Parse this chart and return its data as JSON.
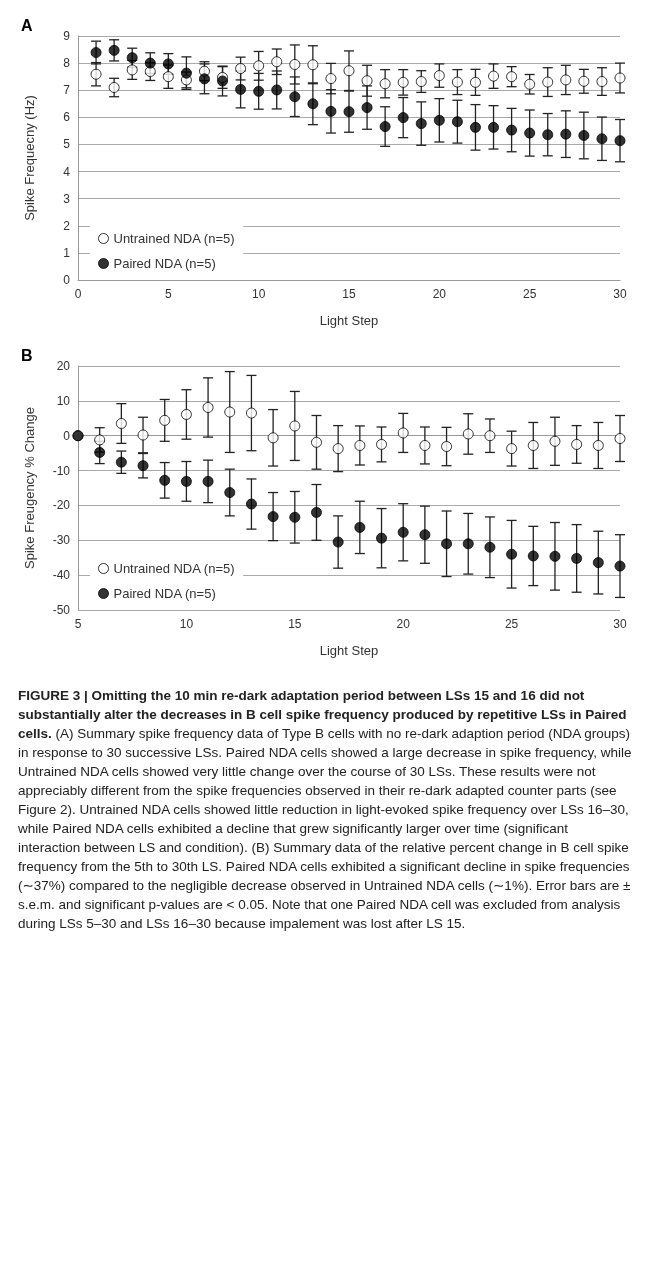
{
  "chart_data": [
    {
      "type": "scatter",
      "title": "A",
      "xlabel": "Light Step",
      "ylabel": "Spike Frequecny (Hz)",
      "xlim": [
        0,
        30
      ],
      "xticks": [
        0,
        5,
        10,
        15,
        20,
        25,
        30
      ],
      "ylim": [
        0,
        9
      ],
      "yticks": [
        0,
        1,
        2,
        3,
        4,
        5,
        6,
        7,
        8,
        9
      ],
      "grid": "y",
      "legend": "bottom left",
      "marker": "circle",
      "x": [
        1,
        2,
        3,
        4,
        5,
        6,
        7,
        8,
        9,
        10,
        11,
        12,
        13,
        14,
        15,
        16,
        17,
        18,
        19,
        20,
        21,
        22,
        23,
        24,
        25,
        26,
        27,
        28,
        29,
        30
      ],
      "series": [
        {
          "name": "Untrained NDA (n=5)",
          "color": "#ffffff",
          "values": [
            7.59,
            7.1,
            7.75,
            7.69,
            7.5,
            7.38,
            7.7,
            7.47,
            7.8,
            7.9,
            8.05,
            7.95,
            7.94,
            7.43,
            7.72,
            7.35,
            7.24,
            7.29,
            7.32,
            7.54,
            7.3,
            7.29,
            7.52,
            7.5,
            7.22,
            7.3,
            7.38,
            7.33,
            7.32,
            7.45
          ],
          "errors": [
            0.43,
            0.34,
            0.35,
            0.33,
            0.43,
            0.29,
            0.35,
            0.4,
            0.42,
            0.53,
            0.47,
            0.72,
            0.7,
            0.56,
            0.73,
            0.57,
            0.52,
            0.47,
            0.4,
            0.43,
            0.46,
            0.48,
            0.45,
            0.37,
            0.36,
            0.53,
            0.54,
            0.44,
            0.51,
            0.55
          ]
        },
        {
          "name": "Paired NDA (n=5)",
          "color": "#000000",
          "values": [
            8.39,
            8.47,
            8.2,
            8.0,
            7.97,
            7.63,
            7.42,
            7.34,
            7.03,
            6.96,
            7.01,
            6.76,
            6.5,
            6.22,
            6.21,
            6.36,
            5.66,
            5.99,
            5.77,
            5.89,
            5.84,
            5.63,
            5.63,
            5.53,
            5.42,
            5.36,
            5.38,
            5.33,
            5.21,
            5.14
          ],
          "errors": [
            0.42,
            0.39,
            0.35,
            0.38,
            0.38,
            0.6,
            0.55,
            0.55,
            0.68,
            0.66,
            0.7,
            0.73,
            0.77,
            0.8,
            0.76,
            0.8,
            0.73,
            0.74,
            0.8,
            0.8,
            0.79,
            0.84,
            0.8,
            0.8,
            0.85,
            0.78,
            0.86,
            0.86,
            0.8,
            0.78
          ]
        }
      ]
    },
    {
      "type": "scatter",
      "title": "B",
      "xlabel": "Light Step",
      "ylabel": "Spike Freugency % Change",
      "xlim": [
        5,
        30
      ],
      "xticks": [
        5,
        10,
        15,
        20,
        25,
        30
      ],
      "ylim": [
        -50,
        20
      ],
      "yticks": [
        -50,
        -40,
        -30,
        -20,
        -10,
        0,
        10,
        20
      ],
      "grid": "y",
      "legend": "bottom left",
      "marker": "circle",
      "x": [
        5,
        6,
        7,
        8,
        9,
        10,
        11,
        12,
        13,
        14,
        15,
        16,
        17,
        18,
        19,
        20,
        21,
        22,
        23,
        24,
        25,
        26,
        27,
        28,
        29,
        30
      ],
      "series": [
        {
          "name": "Untrained NDA (n=5)",
          "color": "#ffffff",
          "values": [
            0,
            -1.2,
            3.5,
            0.2,
            4.4,
            6.1,
            8.1,
            6.8,
            6.5,
            -0.6,
            2.8,
            -1.9,
            -3.7,
            -2.8,
            -2.5,
            0.8,
            -2.8,
            -3.1,
            0.5,
            0,
            -3.7,
            -2.8,
            -1.6,
            -2.5,
            -2.8,
            -0.8
          ],
          "errors": [
            null,
            3.5,
            5.7,
            5.1,
            6,
            7.1,
            8.5,
            11.6,
            10.8,
            8.1,
            9.9,
            7.7,
            6.6,
            5.6,
            5,
            5.6,
            5.3,
            5.5,
            5.8,
            4.8,
            5,
            6.6,
            6.9,
            5.4,
            6.6,
            6.6
          ]
        },
        {
          "name": "Paired NDA (n=5)",
          "color": "#000000",
          "values": [
            0,
            -4.8,
            -7.6,
            -8.6,
            -12.8,
            -13.1,
            -13.1,
            -16.3,
            -19.6,
            -23.2,
            -23.4,
            -22,
            -30.5,
            -26.3,
            -29.4,
            -27.7,
            -28.4,
            -31,
            -31,
            -32,
            -34,
            -34.5,
            -34.6,
            -35.2,
            -36.4,
            -37.4
          ],
          "errors": [
            null,
            3.2,
            3.2,
            3.5,
            5.1,
            5.7,
            6.1,
            6.7,
            7.2,
            6.9,
            7.4,
            8,
            7.5,
            7.5,
            8.5,
            8.2,
            8.2,
            9.4,
            8.7,
            8.7,
            9.7,
            8.5,
            9.7,
            9.7,
            9,
            9
          ]
        }
      ],
      "annotations": [
        "FIGURE 3 | Omitting the 10 min re-dark adaptation period between LSs 15 and 16 did not substantially alter the decreases in B cell spike frequency produced by repetitive LSs in Paired cells.",
        "(A) Summary spike frequency data of Type B cells with no re-dark adaption period (NDA groups) in response to 30 successive LSs. Paired NDA cells showed a large decrease in spike frequency, while Untrained NDA cells showed very little change over the course of 30 LSs. These results were not appreciably different from the spike frequencies observed in their re-dark adapted counter parts (see Figure 2). Untrained NDA cells showed little reduction in light-evoked spike frequency over LSs 16–30, while Paired NDA cells exhibited a decline that grew significantly larger over time (significant interaction between LS and condition). (B) Summary data of the relative percent change in B cell spike frequency from the 5th to 30th LS. Paired NDA cells exhibited a significant decline in spike frequencies (∼37%) compared to the negligible decrease observed in Untrained NDA cells (∼1%). Error bars are ± s.e.m. and significant p-values are < 0.05. Note that one Paired NDA cell was excluded from analysis during LSs 5–30 and LSs 16–30 because impalement was lost after LS 15."
      ]
    }
  ]
}
